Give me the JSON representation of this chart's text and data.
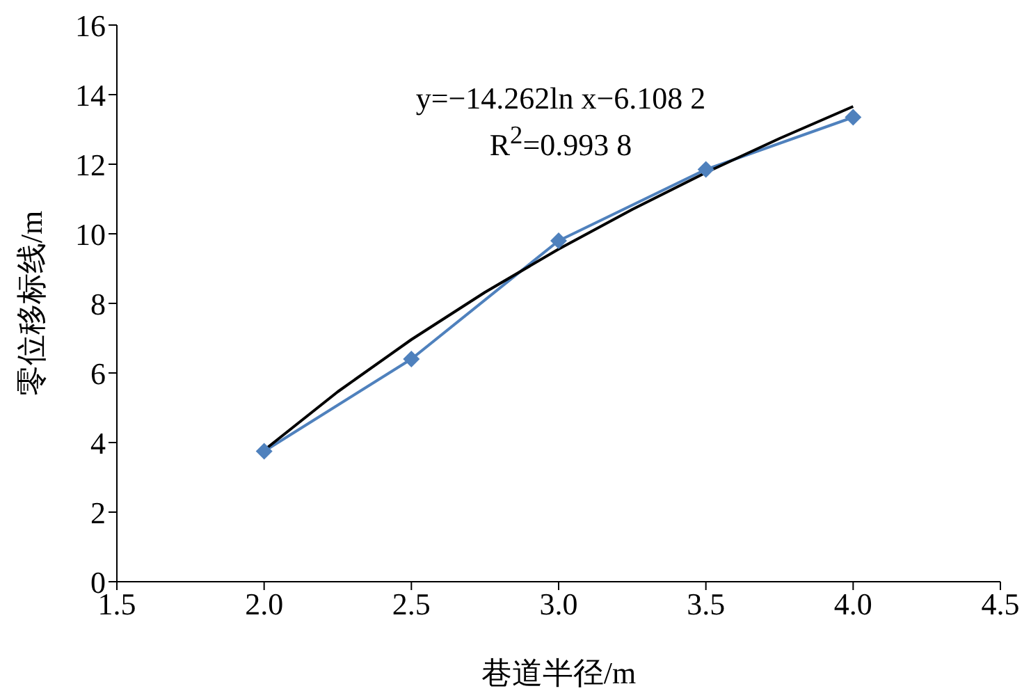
{
  "chart_data": {
    "type": "line",
    "xlabel": "巷道半径/m",
    "ylabel": "零位移标线/m",
    "xlim": [
      1.5,
      4.5
    ],
    "xticks": [
      {
        "value": 1.5,
        "label": "1.5"
      },
      {
        "value": 2,
        "label": "2.0"
      },
      {
        "value": 2.5,
        "label": "2.5"
      },
      {
        "value": 3,
        "label": "3.0"
      },
      {
        "value": 3.5,
        "label": "3.5"
      },
      {
        "value": 4,
        "label": "4.0"
      },
      {
        "value": 4.5,
        "label": "4.5"
      }
    ],
    "ylim": [
      0,
      16
    ],
    "yticks": [
      0,
      2,
      4,
      6,
      8,
      10,
      12,
      14,
      16
    ],
    "x": [
      2,
      2.5,
      3,
      3.5,
      4
    ],
    "series": [
      {
        "color": "#4f81bd",
        "values": [
          3.75,
          6.4,
          9.8,
          11.85,
          13.35
        ],
        "marker": "diamond",
        "line_style": "solid"
      },
      {
        "type": "line",
        "color": "#000000",
        "x": [
          2,
          2.25,
          2.5,
          2.75,
          3,
          3.25,
          3.5,
          3.75,
          4
        ],
        "values": [
          3.78,
          5.46,
          6.96,
          8.32,
          9.56,
          10.7,
          11.76,
          12.74,
          13.66
        ],
        "marker": "none",
        "line_style": "solid"
      }
    ],
    "annotations": [
      "y=−14.262ln x−6.108 2",
      "R$^{2}$=0.993 8"
    ]
  }
}
